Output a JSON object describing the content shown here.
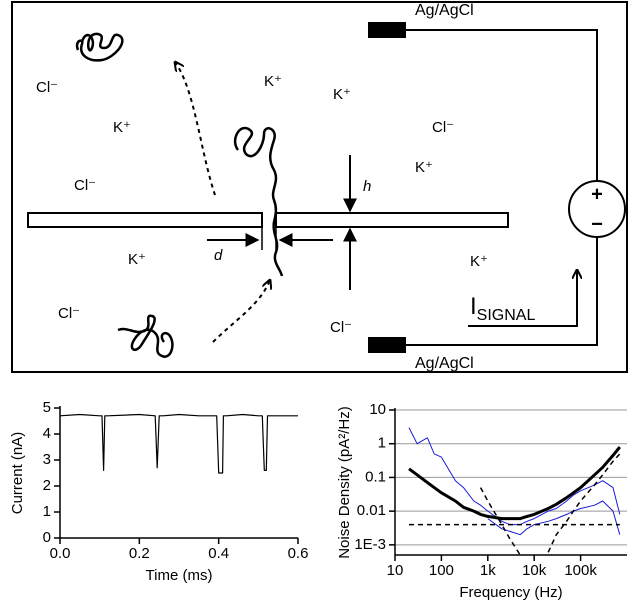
{
  "diagram": {
    "electrodes": [
      "Ag/AgCl",
      "Ag/AgCl"
    ],
    "ions": [
      "Cl⁻",
      "K⁺",
      "Cl⁻",
      "K⁺",
      "K⁺",
      "Cl⁻",
      "K⁺",
      "K⁺",
      "Cl⁻",
      "Cl⁻",
      "K⁺"
    ],
    "labels": {
      "h": "h",
      "d": "d"
    },
    "current": {
      "symbol": "I",
      "subscript": "SIGNAL"
    },
    "battery": {
      "plus": "+",
      "minus": "−"
    }
  },
  "chart_data": [
    {
      "type": "line",
      "x_label": "Time (ms)",
      "y_label": "Current (nA)",
      "x": [
        0,
        0.05,
        0.1,
        0.106,
        0.11,
        0.113,
        0.12,
        0.2,
        0.24,
        0.245,
        0.25,
        0.26,
        0.3,
        0.35,
        0.395,
        0.4,
        0.41,
        0.412,
        0.42,
        0.46,
        0.5,
        0.51,
        0.515,
        0.52,
        0.523,
        0.53,
        0.6
      ],
      "series": [
        {
          "color": "#000000",
          "values": [
            4.7,
            4.75,
            4.7,
            4.7,
            2.6,
            4.7,
            4.7,
            4.75,
            4.7,
            2.7,
            4.7,
            4.7,
            4.75,
            4.7,
            4.7,
            2.5,
            2.5,
            4.7,
            4.7,
            4.75,
            4.7,
            4.7,
            2.6,
            2.6,
            4.7,
            4.7,
            4.7
          ]
        }
      ],
      "xlim": [
        0,
        0.6
      ],
      "ylim": [
        0,
        5
      ],
      "xticks": [
        {
          "value": 0,
          "label": "0.0"
        },
        0.2,
        0.4,
        0.6
      ],
      "yticks": [
        0,
        1,
        2,
        3,
        4,
        5
      ],
      "grid": false
    },
    {
      "type": "line",
      "x_label": "Frequency (Hz)",
      "y_label": "Noise Density (pA²/Hz)",
      "xscale": "log",
      "yscale": "log",
      "x": [
        20,
        30,
        50,
        70,
        100,
        200,
        300,
        500,
        700,
        1000,
        2000,
        3000,
        5000,
        7000,
        10000,
        20000,
        30000,
        50000,
        70000,
        100000,
        200000,
        300000,
        500000,
        700000
      ],
      "series": [
        {
          "color": "#1a1adc",
          "width": 1,
          "values": [
            3,
            1,
            1.5,
            0.5,
            0.4,
            0.08,
            0.05,
            0.02,
            0.015,
            0.01,
            0.005,
            0.004,
            0.004,
            0.005,
            0.006,
            0.01,
            0.012,
            0.02,
            0.03,
            0.04,
            0.06,
            0.08,
            0.05,
            0.008
          ]
        },
        {
          "color": "#1a1adc",
          "width": 1,
          "values": [
            null,
            null,
            null,
            null,
            null,
            null,
            null,
            null,
            null,
            0.006,
            0.003,
            0.0025,
            0.002,
            0.003,
            0.004,
            0.005,
            0.006,
            0.008,
            0.01,
            0.012,
            0.015,
            0.02,
            0.01,
            0.002
          ]
        },
        {
          "color": "#000000",
          "width": 3,
          "values": [
            0.18,
            0.12,
            0.07,
            0.05,
            0.035,
            0.02,
            0.013,
            0.01,
            0.008,
            0.007,
            0.006,
            0.006,
            0.006,
            0.007,
            0.008,
            0.012,
            0.016,
            0.025,
            0.035,
            0.05,
            0.12,
            0.2,
            0.45,
            0.8
          ]
        },
        {
          "color": "#000000",
          "width": 1.5,
          "dash": true,
          "values": [
            0.004,
            0.004,
            0.004,
            0.004,
            0.004,
            0.004,
            0.004,
            0.004,
            0.004,
            0.004,
            0.004,
            0.004,
            0.004,
            0.004,
            0.004,
            0.004,
            0.004,
            0.004,
            0.004,
            0.004,
            0.004,
            0.004,
            0.004,
            0.004
          ]
        },
        {
          "color": "#000000",
          "width": 1.5,
          "dash": true,
          "values": [
            null,
            null,
            null,
            null,
            null,
            null,
            null,
            null,
            0.05,
            0.02,
            0.004,
            0.0015,
            0.0005,
            null,
            null,
            0.0006,
            0.002,
            0.005,
            0.01,
            0.02,
            0.06,
            0.12,
            0.3,
            0.5
          ]
        }
      ],
      "xlim": [
        10,
        1000000
      ],
      "ylim": [
        0.0005,
        10
      ],
      "xticks": [
        10,
        100,
        {
          "value": 1000,
          "label": "1k"
        },
        {
          "value": 10000,
          "label": "10k"
        },
        {
          "value": 100000,
          "label": "100k"
        }
      ],
      "yticks": [
        10,
        1,
        0.1,
        0.01,
        {
          "value": 0.001,
          "label": "1E-3"
        }
      ],
      "grid": true
    }
  ]
}
